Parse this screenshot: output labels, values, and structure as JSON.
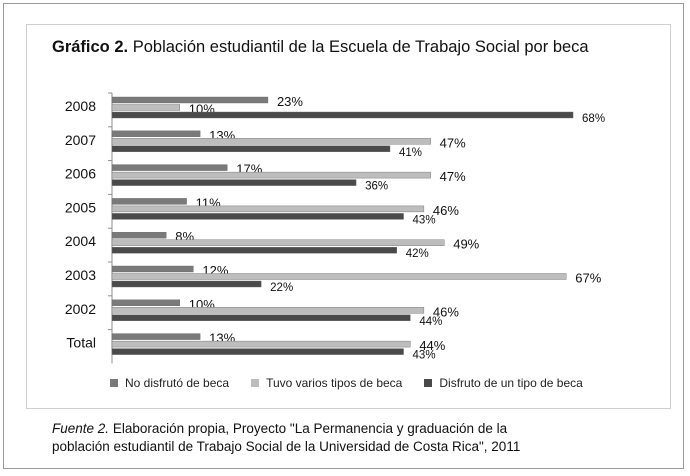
{
  "title_bold": "Gráfico 2.",
  "title_rest": "Población estudiantil de la Escuela de Trabajo Social por beca",
  "source_italic": "Fuente 2.",
  "source_line1": "Elaboración propia, Proyecto \"La Permanencia y graduación de la",
  "source_line2": "población estudiantil de Trabajo Social de la Universidad de Costa Rica\", 2011",
  "colors": {
    "no_disfruto": "#7a7a7a",
    "varios_tipos": "#bdbdbd",
    "un_tipo": "#4a4a4a"
  },
  "chart_data": {
    "type": "bar",
    "orientation": "horizontal",
    "categories": [
      "2008",
      "2007",
      "2006",
      "2005",
      "2004",
      "2003",
      "2002",
      "Total"
    ],
    "series": [
      {
        "name": "No disfrutó de beca",
        "values": [
          23,
          13,
          17,
          11,
          8,
          12,
          10,
          13
        ]
      },
      {
        "name": "Tuvo varios tipos de beca",
        "values": [
          10,
          47,
          47,
          46,
          49,
          67,
          46,
          44
        ]
      },
      {
        "name": "Disfruto de un tipo de beca",
        "values": [
          68,
          41,
          36,
          43,
          42,
          22,
          44,
          43
        ]
      }
    ],
    "xlim": [
      0,
      70
    ],
    "unit": "%",
    "grid": false,
    "legend_position": "bottom"
  }
}
